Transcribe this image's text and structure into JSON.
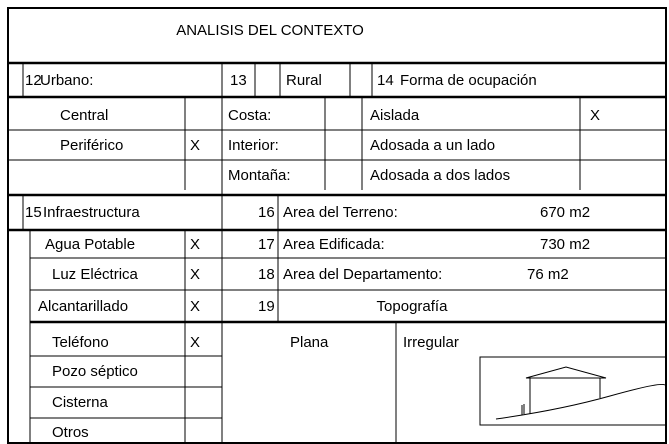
{
  "title": "ANALISIS DEL CONTEXTO",
  "urbano": {
    "number": "12",
    "label": "Urbano:",
    "options": [
      {
        "label": "Central"
      },
      {
        "label": "Periférico",
        "mark": "X"
      }
    ]
  },
  "rural": {
    "number": "13",
    "label": "Rural",
    "options": [
      "Costa:",
      "Interior:",
      "Montaña:"
    ]
  },
  "forma": {
    "number": "14",
    "label": "Forma de ocupación",
    "options": [
      {
        "label": "Aislada",
        "mark": "X"
      },
      {
        "label": "Adosada a un lado"
      },
      {
        "label": "Adosada a dos lados"
      }
    ]
  },
  "infraestructura": {
    "number": "15",
    "label": "Infraestructura",
    "services": [
      {
        "label": "Agua Potable",
        "mark": "X"
      },
      {
        "label": "Luz Eléctrica",
        "mark": "X"
      },
      {
        "label": "Alcantarillado",
        "mark": "X"
      },
      {
        "label": "Teléfono",
        "mark": "X"
      },
      {
        "label": "Pozo séptico"
      },
      {
        "label": "Cisterna"
      },
      {
        "label": "Otros"
      }
    ]
  },
  "areas": [
    {
      "number": "16",
      "label": "Area del Terreno:",
      "value": "670 m2"
    },
    {
      "number": "17",
      "label": "Area Edificada:",
      "value": "730 m2"
    },
    {
      "number": "18",
      "label": "Area del Departamento:",
      "value": "76 m2"
    }
  ],
  "topografia": {
    "number": "19",
    "label": "Topografía",
    "options": [
      "Plana",
      "Irregular"
    ]
  }
}
